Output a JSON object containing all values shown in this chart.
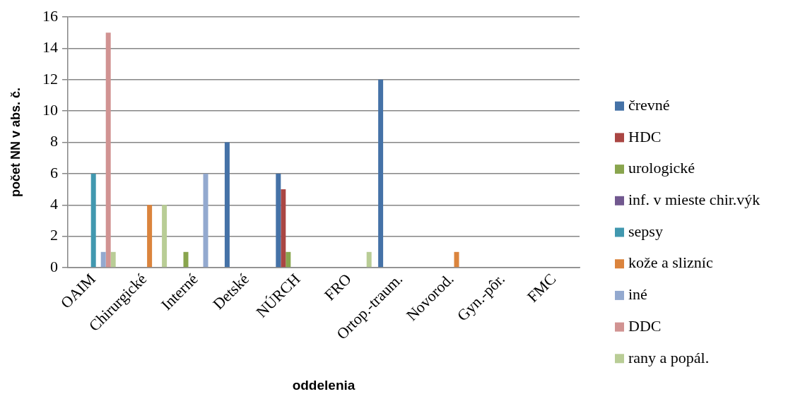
{
  "chart_data": {
    "type": "bar",
    "xlabel": "oddelenia",
    "ylabel": "počet NN v abs. č.",
    "categories": [
      "OAIM",
      "Chirurgické",
      "Interné",
      "Detské",
      "NÚRCH",
      "FRO",
      "Ortop.-traum.",
      "Novorod.",
      "Gyn.-pôr.",
      "FMC"
    ],
    "series": [
      {
        "name": "črevné",
        "color": "#4572a7",
        "values": [
          0,
          0,
          0,
          8,
          6,
          0,
          12,
          0,
          0,
          0
        ]
      },
      {
        "name": "HDC",
        "color": "#aa4643",
        "values": [
          0,
          0,
          0,
          0,
          5,
          0,
          0,
          0,
          0,
          0
        ]
      },
      {
        "name": "urologické",
        "color": "#89a54e",
        "values": [
          0,
          0,
          1,
          0,
          1,
          0,
          0,
          0,
          0,
          0
        ]
      },
      {
        "name": "inf. v mieste chir.výk",
        "color": "#71588f",
        "values": [
          0,
          0,
          0,
          0,
          0,
          0,
          0,
          0,
          0,
          0
        ]
      },
      {
        "name": "sepsy",
        "color": "#4198af",
        "values": [
          6,
          0,
          0,
          0,
          0,
          0,
          0,
          0,
          0,
          0
        ]
      },
      {
        "name": "kože a slizníc",
        "color": "#db843d",
        "values": [
          0,
          4,
          0,
          0,
          0,
          0,
          0,
          1,
          0,
          0
        ]
      },
      {
        "name": "iné",
        "color": "#93a9cf",
        "values": [
          1,
          0,
          6,
          0,
          0,
          0,
          0,
          0,
          0,
          0
        ]
      },
      {
        "name": "DDC",
        "color": "#d19392",
        "values": [
          15,
          0,
          0,
          0,
          0,
          0,
          0,
          0,
          0,
          0
        ]
      },
      {
        "name": "rany a popál.",
        "color": "#b9cd96",
        "values": [
          1,
          4,
          0,
          0,
          0,
          1,
          0,
          0,
          0,
          0
        ]
      }
    ],
    "ylim": [
      0,
      16
    ],
    "yticks": [
      0,
      2,
      4,
      6,
      8,
      10,
      12,
      14,
      16
    ],
    "grid": "y",
    "legend": "right"
  }
}
